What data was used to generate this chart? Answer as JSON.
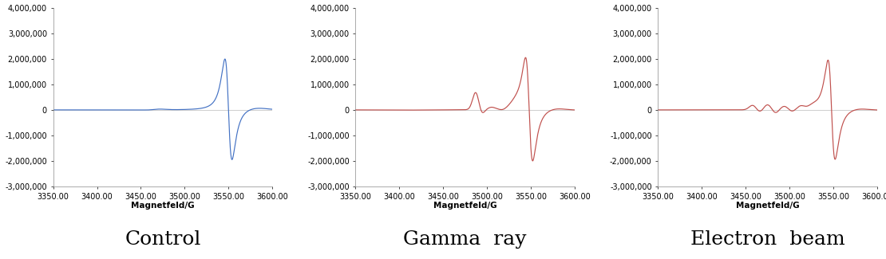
{
  "xlim": [
    3350,
    3600
  ],
  "ylim": [
    -3000000,
    4000000
  ],
  "xticks": [
    3350.0,
    3400.0,
    3450.0,
    3500.0,
    3550.0,
    3600.0
  ],
  "yticks": [
    -3000000,
    -2000000,
    -1000000,
    0,
    1000000,
    2000000,
    3000000,
    4000000
  ],
  "xlabel": "Magnetfeld/G",
  "control_color": "#4472C4",
  "irradiated_color": "#C0504D",
  "titles": [
    "Control",
    "Gamma  ray",
    "Electron  beam"
  ],
  "title_fontsize": 18,
  "axis_fontsize": 7,
  "xlabel_fontsize": 7.5,
  "bg_color": "#FFFFFF"
}
